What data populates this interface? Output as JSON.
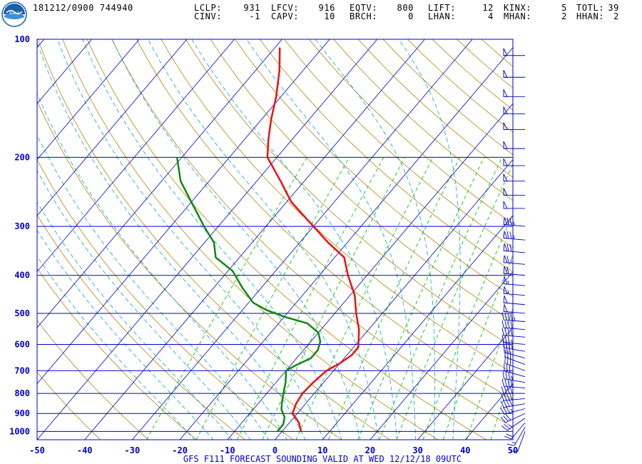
{
  "header": {
    "station": "181212/0900 744940",
    "row1": [
      {
        "key": "LCLP:",
        "val": "931"
      },
      {
        "key": "LFCV:",
        "val": "916"
      },
      {
        "key": "EQTV:",
        "val": "800"
      },
      {
        "key": "LIFT:",
        "val": "12"
      },
      {
        "key": "KINX:",
        "val": "5"
      },
      {
        "key": "TOTL:",
        "val": "39"
      }
    ],
    "row2": [
      {
        "key": "CINV:",
        "val": "-1"
      },
      {
        "key": "CAPV:",
        "val": "10"
      },
      {
        "key": "BRCH:",
        "val": "0"
      },
      {
        "key": "LHAN:",
        "val": "4"
      },
      {
        "key": "MHAN:",
        "val": "2"
      },
      {
        "key": "HHAN:",
        "val": "2"
      }
    ],
    "logo_text": "NOAA"
  },
  "colors": {
    "isobar": "#0000cc",
    "isotherm": "#0000cc",
    "dry_adiabat": "#b8860b",
    "moist_adiabat": "#00aacc",
    "mixing_ratio": "#22cc22",
    "temperature": "#ee1111",
    "dewpoint": "#118811",
    "wind": "#0000cc",
    "axis_text": "#0000cc"
  },
  "chart_data": {
    "type": "line",
    "title": "GFS F111 FORECAST SOUNDING VALID AT WED 12/12/18 09UTC",
    "xlabel": "",
    "ylabel": "",
    "xlim": [
      -50,
      50
    ],
    "ylim": [
      1050,
      100
    ],
    "y_scale": "log-pressure",
    "x_ticks": [
      -50,
      -40,
      -30,
      -20,
      -10,
      0,
      10,
      20,
      30,
      40,
      50
    ],
    "y_ticks": [
      100,
      200,
      300,
      400,
      500,
      600,
      700,
      800,
      900,
      1000
    ],
    "skew_deg_per_decade": 70,
    "series": [
      {
        "name": "",
        "role": "temperature",
        "points": [
          [
            1000,
            4
          ],
          [
            950,
            2
          ],
          [
            900,
            -1
          ],
          [
            850,
            -2
          ],
          [
            800,
            -2.5
          ],
          [
            750,
            -2.2
          ],
          [
            700,
            -1.5
          ],
          [
            670,
            0
          ],
          [
            640,
            1
          ],
          [
            610,
            1
          ],
          [
            550,
            -2
          ],
          [
            500,
            -5.5
          ],
          [
            450,
            -9
          ],
          [
            400,
            -14
          ],
          [
            360,
            -18
          ],
          [
            330,
            -24
          ],
          [
            300,
            -30
          ],
          [
            260,
            -39
          ],
          [
            230,
            -45
          ],
          [
            200,
            -52
          ],
          [
            180,
            -55
          ],
          [
            160,
            -58
          ],
          [
            140,
            -61
          ],
          [
            120,
            -65
          ],
          [
            105,
            -69
          ]
        ]
      },
      {
        "name": "",
        "role": "dewpoint",
        "points": [
          [
            1000,
            -1
          ],
          [
            960,
            -1
          ],
          [
            920,
            -2
          ],
          [
            880,
            -4
          ],
          [
            850,
            -5
          ],
          [
            800,
            -6.5
          ],
          [
            750,
            -8
          ],
          [
            700,
            -10
          ],
          [
            680,
            -9
          ],
          [
            650,
            -7
          ],
          [
            620,
            -7
          ],
          [
            590,
            -8
          ],
          [
            560,
            -10
          ],
          [
            530,
            -14
          ],
          [
            510,
            -20
          ],
          [
            490,
            -25
          ],
          [
            470,
            -29
          ],
          [
            430,
            -34
          ],
          [
            390,
            -39
          ],
          [
            360,
            -45
          ],
          [
            330,
            -48
          ],
          [
            300,
            -53
          ],
          [
            260,
            -60
          ],
          [
            230,
            -66
          ],
          [
            200,
            -71
          ]
        ]
      }
    ],
    "wind_barbs": [
      {
        "p": 1000,
        "dir": 200,
        "spd": 10
      },
      {
        "p": 975,
        "dir": 210,
        "spd": 15
      },
      {
        "p": 950,
        "dir": 220,
        "spd": 20
      },
      {
        "p": 925,
        "dir": 235,
        "spd": 25
      },
      {
        "p": 900,
        "dir": 245,
        "spd": 30
      },
      {
        "p": 875,
        "dir": 255,
        "spd": 35
      },
      {
        "p": 850,
        "dir": 260,
        "spd": 40
      },
      {
        "p": 825,
        "dir": 265,
        "spd": 40
      },
      {
        "p": 800,
        "dir": 270,
        "spd": 40
      },
      {
        "p": 775,
        "dir": 275,
        "spd": 40
      },
      {
        "p": 750,
        "dir": 280,
        "spd": 35
      },
      {
        "p": 725,
        "dir": 285,
        "spd": 30
      },
      {
        "p": 700,
        "dir": 290,
        "spd": 30
      },
      {
        "p": 675,
        "dir": 290,
        "spd": 30
      },
      {
        "p": 650,
        "dir": 285,
        "spd": 30
      },
      {
        "p": 625,
        "dir": 280,
        "spd": 35
      },
      {
        "p": 600,
        "dir": 275,
        "spd": 35
      },
      {
        "p": 575,
        "dir": 275,
        "spd": 40
      },
      {
        "p": 550,
        "dir": 275,
        "spd": 40
      },
      {
        "p": 525,
        "dir": 275,
        "spd": 45
      },
      {
        "p": 500,
        "dir": 275,
        "spd": 50
      },
      {
        "p": 475,
        "dir": 275,
        "spd": 50
      },
      {
        "p": 450,
        "dir": 275,
        "spd": 55
      },
      {
        "p": 425,
        "dir": 275,
        "spd": 55
      },
      {
        "p": 400,
        "dir": 275,
        "spd": 60
      },
      {
        "p": 375,
        "dir": 275,
        "spd": 65
      },
      {
        "p": 350,
        "dir": 275,
        "spd": 70
      },
      {
        "p": 325,
        "dir": 275,
        "spd": 75
      },
      {
        "p": 300,
        "dir": 275,
        "spd": 75
      },
      {
        "p": 270,
        "dir": 270,
        "spd": 50
      },
      {
        "p": 250,
        "dir": 270,
        "spd": 50
      },
      {
        "p": 230,
        "dir": 270,
        "spd": 50
      },
      {
        "p": 210,
        "dir": 270,
        "spd": 50
      },
      {
        "p": 190,
        "dir": 270,
        "spd": 50
      },
      {
        "p": 170,
        "dir": 270,
        "spd": 50
      },
      {
        "p": 155,
        "dir": 270,
        "spd": 50
      },
      {
        "p": 140,
        "dir": 270,
        "spd": 50
      },
      {
        "p": 125,
        "dir": 270,
        "spd": 50
      },
      {
        "p": 110,
        "dir": 270,
        "spd": 50
      }
    ]
  }
}
